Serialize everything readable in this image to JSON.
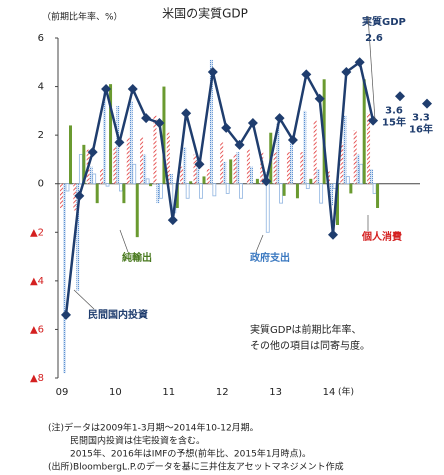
{
  "chart_data": {
    "type": "bar_line",
    "title": "米国の実質GDP",
    "y_label": "（前期比年率、%）",
    "x_label": "(年)",
    "categories": [
      "09",
      null,
      null,
      null,
      "10",
      null,
      null,
      null,
      "11",
      null,
      null,
      null,
      "12",
      null,
      null,
      null,
      "13",
      null,
      null,
      null,
      "14",
      null,
      null,
      null
    ],
    "ylim": [
      -8,
      6
    ],
    "yticks": [
      6,
      4,
      2,
      0,
      {
        "value": -2,
        "label": "▲2"
      },
      {
        "value": -4,
        "label": "▲4"
      },
      {
        "value": -6,
        "label": "▲6"
      },
      {
        "value": -8,
        "label": "▲8"
      }
    ],
    "series": [
      {
        "name": "個人消費",
        "color": "#e03030",
        "kind": "bar",
        "values": [
          -1.0,
          -1.1,
          1.4,
          0.6,
          1.5,
          1.9,
          1.9,
          2.8,
          2.1,
          0.7,
          1.2,
          0.6,
          1.7,
          1.2,
          1.4,
          1.3,
          1.3,
          1.3,
          1.3,
          2.6,
          0.5,
          1.7,
          2.2,
          2.9
        ]
      },
      {
        "name": "民間国内投資",
        "color": "#5b8fd0",
        "kind": "bar",
        "values": [
          -7.8,
          -4.4,
          0.7,
          3.9,
          3.2,
          3.4,
          1.2,
          -0.8,
          0.4,
          1.5,
          1.0,
          5.1,
          0.9,
          1.3,
          0.7,
          0.5,
          2.5,
          1.7,
          3.0,
          0.6,
          -0.9,
          2.8,
          1.2,
          0.6
        ]
      },
      {
        "name": "政府支出",
        "color": "#8fb4e0",
        "kind": "bar",
        "values": [
          -0.3,
          1.2,
          0.4,
          -0.1,
          -0.3,
          0.8,
          0.2,
          -0.6,
          -1.2,
          -0.6,
          -0.6,
          -0.5,
          -0.4,
          -0.6,
          0.0,
          -2.0,
          -0.8,
          0.0,
          -0.2,
          -0.8,
          -0.2,
          0.3,
          0.8,
          -0.4
        ]
      },
      {
        "name": "純輸出",
        "color": "#6a9a30",
        "kind": "bar",
        "values": [
          2.4,
          1.6,
          -0.8,
          4.1,
          -0.8,
          -2.2,
          -0.1,
          4.0,
          -1.0,
          0.1,
          0.3,
          0.0,
          1.0,
          0.0,
          0.2,
          2.1,
          -0.5,
          -0.6,
          0.2,
          4.3,
          -1.7,
          -0.4,
          4.3,
          -1.0
        ]
      },
      {
        "name": "実質GDP",
        "color": "#1f3d6e",
        "kind": "line",
        "values": [
          -5.4,
          -0.5,
          1.3,
          3.9,
          1.7,
          3.9,
          2.7,
          2.5,
          -1.5,
          2.9,
          0.8,
          4.6,
          2.3,
          1.6,
          2.5,
          0.1,
          2.7,
          1.8,
          4.5,
          3.5,
          -2.1,
          4.6,
          5.0,
          2.6
        ]
      }
    ],
    "forecast": {
      "x": [
        "15年",
        "16年"
      ],
      "values": [
        3.6,
        3.3
      ],
      "color": "#1f3d6e"
    },
    "annotation": [
      "実質GDPは前期比年率、",
      "その他の項目は同寄与度。"
    ],
    "notes": [
      "(注)データは2009年1-3月期～2014年10-12月期。",
      "民間国内投資は住宅投資を含む。",
      "2015年、2016年はIMFの予想(前年比、2015年1月時点)。",
      "(出所)BloombergL.P.のデータを基に三井住友アセットマネジメント作成"
    ]
  }
}
